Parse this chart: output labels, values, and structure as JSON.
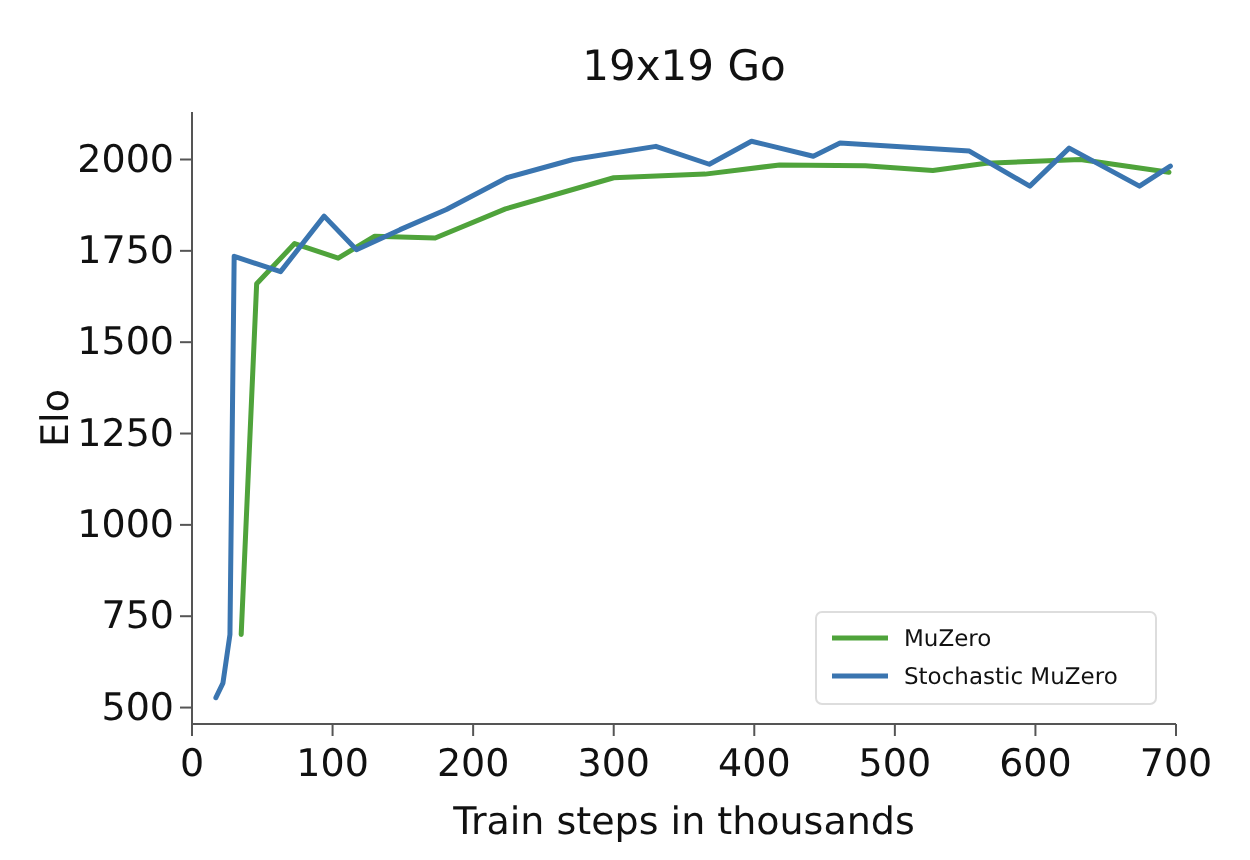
{
  "chart_data": {
    "type": "line",
    "title": "19x19 Go",
    "xlabel": "Train steps in thousands",
    "ylabel": "Elo",
    "xlim": [
      0,
      700
    ],
    "xticks": [
      0,
      100,
      200,
      300,
      400,
      500,
      600,
      700
    ],
    "ylim": [
      455,
      2130
    ],
    "yticks": [
      500,
      750,
      1000,
      1250,
      1500,
      1750,
      2000
    ],
    "legend": "bottom right",
    "grid": false,
    "series": [
      {
        "name": "MuZero",
        "color": "#4fa33b",
        "x": [
          35,
          46,
          73,
          104,
          130,
          173,
          223,
          300,
          365,
          418,
          479,
          527,
          565,
          632,
          695
        ],
        "values": [
          700,
          1660,
          1770,
          1730,
          1790,
          1785,
          1865,
          1950,
          1960,
          1985,
          1983,
          1970,
          1990,
          2000,
          1965
        ]
      },
      {
        "name": "Stochastic MuZero",
        "color": "#3a75b0",
        "x": [
          17,
          22,
          27,
          30,
          63,
          94,
          117,
          148,
          181,
          224,
          271,
          330,
          368,
          398,
          442,
          461,
          553,
          596,
          624,
          674,
          696
        ],
        "values": [
          527,
          567,
          700,
          1735,
          1693,
          1845,
          1753,
          1808,
          1863,
          1950,
          2000,
          2036,
          1987,
          2050,
          2009,
          2045,
          2023,
          1927,
          2031,
          1927,
          1982
        ]
      }
    ]
  }
}
